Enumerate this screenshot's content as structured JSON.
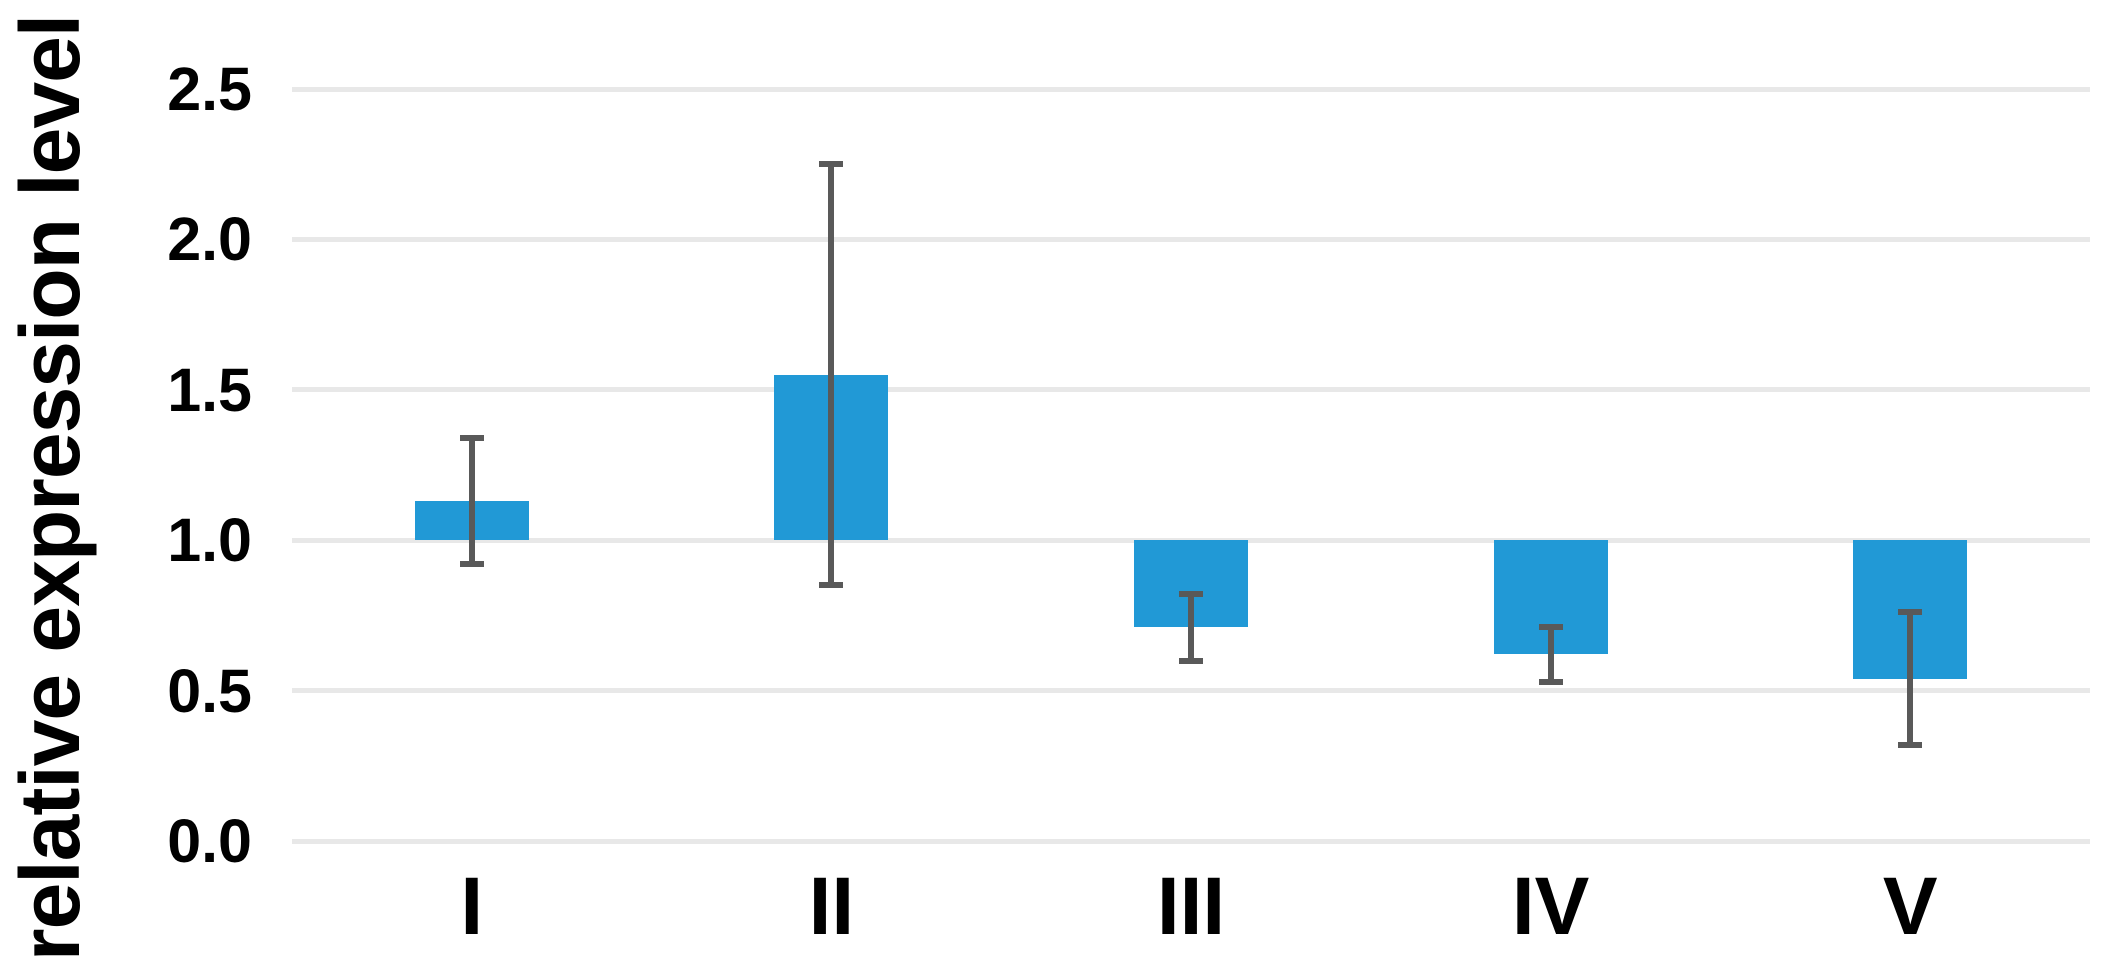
{
  "chart_data": {
    "type": "bar",
    "title": "",
    "ylabel": "relative expression level",
    "xlabel": "",
    "categories": [
      "I",
      "II",
      "III",
      "IV",
      "V"
    ],
    "values": [
      1.13,
      1.55,
      0.71,
      0.62,
      0.54
    ],
    "error_bars": {
      "symmetric": true,
      "values": [
        0.21,
        0.7,
        0.11,
        0.09,
        0.22
      ]
    },
    "bar_baseline": 1.0,
    "ylim": [
      0,
      2.5
    ],
    "ytick_values": [
      0,
      0.5,
      1.0,
      1.5,
      2.0,
      2.5
    ],
    "ytick_labels": [
      "0.0",
      "0.5",
      "1.0",
      "1.5",
      "2.0",
      "2.5"
    ],
    "grid": true,
    "legend": false,
    "colors": {
      "bar": "#2199d6",
      "error": "#595959",
      "grid": "#e8e8e8",
      "text": "#000000",
      "background": "#ffffff"
    }
  }
}
